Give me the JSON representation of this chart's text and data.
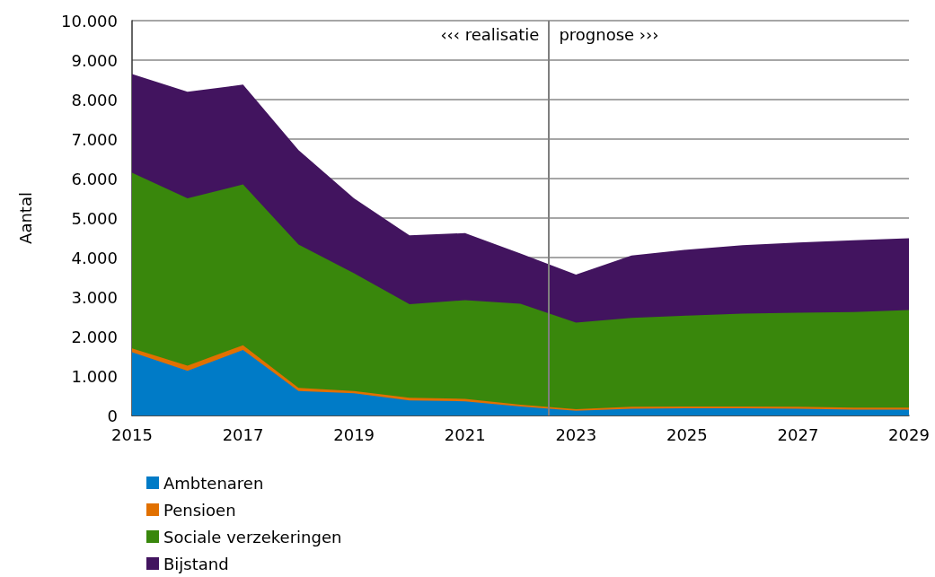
{
  "chart_data": {
    "type": "area",
    "stacked": true,
    "ylabel": "Aantal",
    "x": [
      2015,
      2016,
      2017,
      2018,
      2019,
      2020,
      2021,
      2022,
      2023,
      2024,
      2025,
      2026,
      2027,
      2028,
      2029
    ],
    "xlim": [
      2015,
      2029
    ],
    "xticks": [
      2015,
      2017,
      2019,
      2021,
      2023,
      2025,
      2027,
      2029
    ],
    "ylim": [
      0,
      10000
    ],
    "yticks": [
      {
        "value": 0,
        "label": "0"
      },
      {
        "value": 1000,
        "label": "1.000"
      },
      {
        "value": 2000,
        "label": "2.000"
      },
      {
        "value": 3000,
        "label": "3.000"
      },
      {
        "value": 4000,
        "label": "4.000"
      },
      {
        "value": 5000,
        "label": "5.000"
      },
      {
        "value": 6000,
        "label": "6.000"
      },
      {
        "value": 7000,
        "label": "7.000"
      },
      {
        "value": 8000,
        "label": "8.000"
      },
      {
        "value": 9000,
        "label": "9.000"
      },
      {
        "value": 10000,
        "label": "10.000"
      }
    ],
    "grid": "y",
    "legend": "bottom left",
    "series": [
      {
        "name": "Ambtenaren",
        "color": "#007bc7",
        "values": [
          1600,
          1130,
          1660,
          620,
          560,
          380,
          360,
          230,
          120,
          170,
          180,
          180,
          170,
          150,
          150
        ]
      },
      {
        "name": "Pensioen",
        "color": "#e17000",
        "values": [
          100,
          130,
          120,
          80,
          60,
          70,
          60,
          40,
          40,
          50,
          50,
          50,
          50,
          50,
          50
        ]
      },
      {
        "name": "Sociale verzekeringen",
        "color": "#39870c",
        "values": [
          4450,
          4240,
          4070,
          3630,
          2980,
          2370,
          2500,
          2560,
          2190,
          2250,
          2300,
          2350,
          2380,
          2420,
          2470
        ]
      },
      {
        "name": "Bijstand",
        "color": "#42145f",
        "values": [
          2500,
          2700,
          2530,
          2390,
          1900,
          1740,
          1700,
          1270,
          1220,
          1580,
          1670,
          1730,
          1780,
          1820,
          1820
        ]
      }
    ],
    "ref_lines": [
      {
        "axis": "x",
        "value": 2022.5,
        "color": "#7f7f7f"
      }
    ],
    "annotations": [
      {
        "text": "‹‹‹ realisatie",
        "x": 2022.5,
        "y": 9600
      },
      {
        "text": "prognose ›››",
        "x": 2022.5,
        "y": 9600
      }
    ]
  }
}
